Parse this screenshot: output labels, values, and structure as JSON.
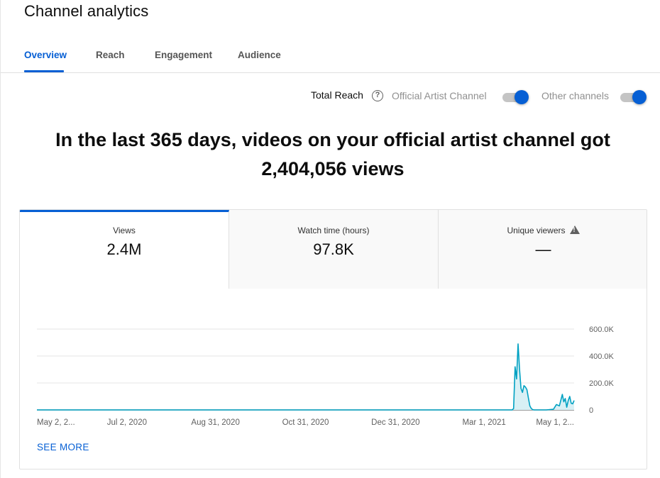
{
  "header": {
    "title": "Channel analytics"
  },
  "tabs": [
    {
      "label": "Overview",
      "active": true
    },
    {
      "label": "Reach",
      "active": false
    },
    {
      "label": "Engagement",
      "active": false
    },
    {
      "label": "Audience",
      "active": false
    }
  ],
  "reach": {
    "label": "Total Reach",
    "help_icon": "help-circle-icon",
    "toggles": [
      {
        "label": "Official Artist Channel",
        "on": true
      },
      {
        "label": "Other channels",
        "on": true
      }
    ]
  },
  "headline": {
    "line1": "In the last 365 days, videos on your official artist channel got",
    "line2": "2,404,056 views"
  },
  "metrics": [
    {
      "label": "Views",
      "value": "2.4M",
      "active": true
    },
    {
      "label": "Watch time (hours)",
      "value": "97.8K",
      "active": false
    },
    {
      "label": "Unique viewers",
      "value": "—",
      "active": false,
      "warning_icon": "warning-triangle-icon"
    }
  ],
  "see_more": "SEE MORE",
  "colors": {
    "accent": "#065fd4",
    "series_line": "#00a1c2",
    "series_fill": "#d8f0f5"
  },
  "chart_data": {
    "type": "area",
    "y_tick_labels": [
      "0",
      "200.0K",
      "400.0K",
      "600.0K"
    ],
    "y_ticks": [
      0,
      200000,
      400000,
      600000
    ],
    "ylim": [
      0,
      600000
    ],
    "x_tick_labels": [
      "May 2, 2...",
      "Jul 2, 2020",
      "Aug 31, 2020",
      "Oct 31, 2020",
      "Dec 31, 2020",
      "Mar 1, 2021",
      "May 1, 2..."
    ],
    "x_tick_days": [
      0,
      61,
      121,
      182,
      243,
      303,
      364
    ],
    "xlim": [
      0,
      364
    ],
    "grid": true,
    "series": [
      {
        "x": [
          0,
          60,
          120,
          180,
          240,
          300,
          315,
          322,
          323,
          324,
          325,
          326,
          327,
          328,
          329,
          330,
          331,
          332,
          333,
          334,
          335,
          336,
          337,
          338,
          339,
          340,
          345,
          350,
          352,
          354,
          356,
          357,
          358,
          359,
          360,
          361,
          362,
          363,
          364
        ],
        "y": [
          0,
          0,
          0,
          0,
          0,
          0,
          0,
          0,
          10000,
          320000,
          230000,
          490000,
          300000,
          160000,
          130000,
          180000,
          170000,
          150000,
          90000,
          30000,
          10000,
          2000,
          0,
          0,
          0,
          0,
          0,
          5000,
          40000,
          30000,
          115000,
          60000,
          85000,
          20000,
          70000,
          100000,
          50000,
          45000,
          70000
        ]
      }
    ]
  }
}
